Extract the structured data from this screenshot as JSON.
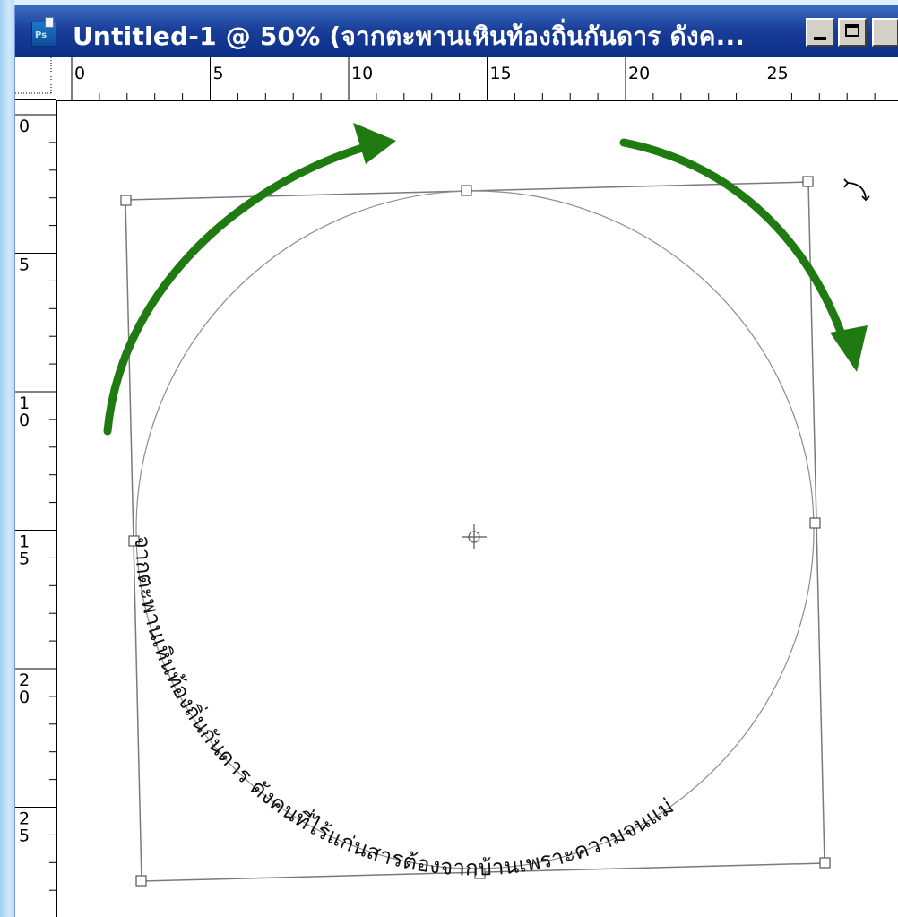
{
  "window": {
    "app_icon": "photoshop-icon",
    "app_icon_text": "Ps",
    "title": "Untitled-1 @ 50% (จากตะพานเหินท้องถิ่นกันดาร ดังค...",
    "buttons": {
      "minimize": "minimize-icon",
      "maximize": "maximize-icon"
    }
  },
  "ruler": {
    "horizontal_labels": [
      "0",
      "5",
      "10",
      "15",
      "20",
      "25"
    ],
    "vertical_labels": [
      "0",
      "5",
      "10",
      "15",
      "20",
      "25"
    ]
  },
  "canvas": {
    "path_text": "จากตะพานเหินท้องถิ่นกันดาร ดังคนที่ไร้แก่นสารต้องจากบ้านเพราะความจนแม่",
    "text_color": "#111111",
    "arrow_color": "#1f7a12",
    "path_color": "#7f7f7f",
    "rotate_cursor": "rotate-cursor-icon",
    "center_marker": "center-crosshair-icon"
  }
}
